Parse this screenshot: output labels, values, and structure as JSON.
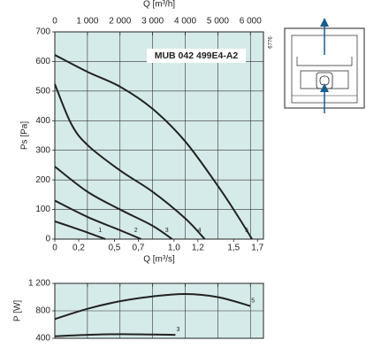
{
  "chart_data": [
    {
      "type": "line",
      "title": "MUB 042 499E4-A2",
      "annotation": "6776",
      "x_label": "Q [m³/h]",
      "x2_label": "Q [m³/s]",
      "y_label": "Ps [Pa]",
      "xlim": [
        0,
        6400
      ],
      "xticks": [
        0,
        {
          "value": 1000,
          "label": "1 000"
        },
        {
          "value": 2000,
          "label": "2 000"
        },
        {
          "value": 3000,
          "label": "3 000"
        },
        {
          "value": 4000,
          "label": "4 000"
        },
        {
          "value": 5000,
          "label": "5 000"
        },
        {
          "value": 6000,
          "label": "6 000"
        }
      ],
      "x2lim": [
        0,
        1.75
      ],
      "x2ticks": [
        0,
        {
          "value": 0.2,
          "label": "0,2"
        },
        {
          "value": 0.5,
          "label": "0,5"
        },
        {
          "value": 0.7,
          "label": "0,7"
        },
        {
          "value": 1.0,
          "label": "1,0"
        },
        {
          "value": 1.2,
          "label": "1,2"
        },
        {
          "value": 1.5,
          "label": "1,5"
        },
        {
          "value": 1.7,
          "label": "1,7"
        }
      ],
      "ylim": [
        0,
        700
      ],
      "yticks": [
        0,
        100,
        200,
        300,
        400,
        500,
        600,
        700
      ],
      "grid": true,
      "background": "#d5ebe9",
      "series": [
        {
          "name": "1",
          "color": "#222222",
          "x": [
            0,
            800,
            1550
          ],
          "values": [
            60,
            30,
            0
          ]
        },
        {
          "name": "2",
          "color": "#222222",
          "x": [
            0,
            1000,
            2000,
            2650
          ],
          "values": [
            130,
            75,
            30,
            0
          ]
        },
        {
          "name": "3",
          "color": "#222222",
          "x": [
            0,
            1000,
            2000,
            3000,
            3600
          ],
          "values": [
            245,
            160,
            100,
            45,
            0
          ]
        },
        {
          "name": "4",
          "color": "#222222",
          "x": [
            0,
            500,
            1000,
            2000,
            3000,
            4000,
            4600
          ],
          "values": [
            524,
            390,
            318,
            232,
            160,
            70,
            0
          ]
        },
        {
          "name": "5",
          "color": "#222222",
          "x": [
            0,
            1000,
            2000,
            3000,
            4000,
            5000,
            5600,
            6050
          ],
          "values": [
            622,
            565,
            515,
            440,
            330,
            180,
            80,
            0
          ]
        }
      ]
    },
    {
      "type": "line",
      "y_label": "P [W]",
      "xlim": [
        0,
        6400
      ],
      "ylim": [
        400,
        1200
      ],
      "yticks": [
        400,
        800,
        {
          "value": 1200,
          "label": "1 200"
        }
      ],
      "grid": true,
      "background": "#d5ebe9",
      "series": [
        {
          "name": "5",
          "color": "#222222",
          "x": [
            0,
            1000,
            2000,
            3000,
            4000,
            5000,
            6000
          ],
          "values": [
            680,
            830,
            940,
            1010,
            1045,
            1000,
            870
          ]
        },
        {
          "name": "3",
          "color": "#222222",
          "x": [
            0,
            1000,
            2000,
            3000,
            3700
          ],
          "values": [
            430,
            450,
            460,
            455,
            450
          ]
        }
      ]
    }
  ]
}
